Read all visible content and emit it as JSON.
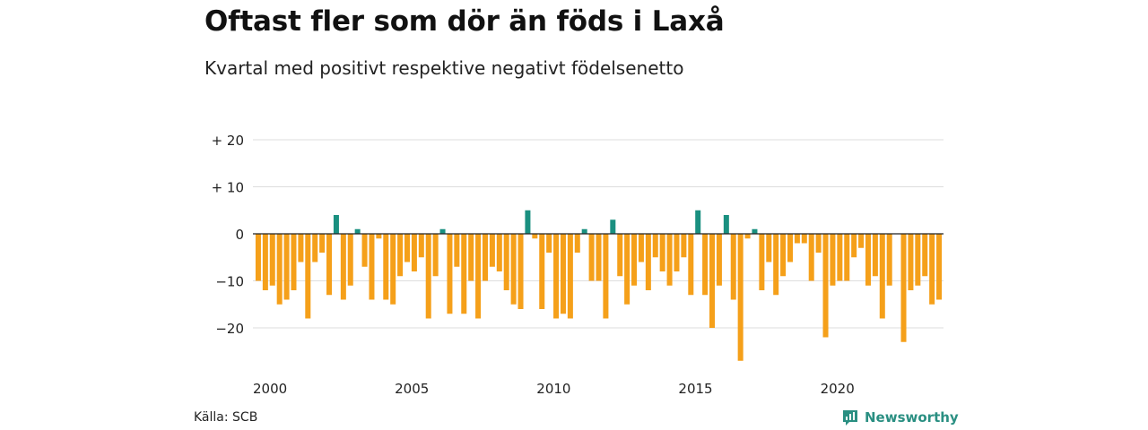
{
  "title": "Oftast fler som dör än föds i Laxå",
  "subtitle": "Kvartal med positivt respektive negativt födelsenetto",
  "source": "Källa: SCB",
  "brand": "Newsworthy",
  "colors": {
    "positive": "#1a9080",
    "negative": "#f5a01a",
    "grid": "#dddddd",
    "zero": "#222222"
  },
  "chart_data": {
    "type": "bar",
    "title": "Oftast fler som dör än föds i Laxå",
    "subtitle": "Kvartal med positivt respektive negativt födelsenetto",
    "xlabel": "",
    "ylabel": "",
    "ylim": [
      -28,
      22
    ],
    "yticks": [
      {
        "value": 20,
        "label": "+ 20"
      },
      {
        "value": 10,
        "label": "+ 10"
      },
      {
        "value": 0,
        "label": "0"
      },
      {
        "value": -10,
        "label": "−10"
      },
      {
        "value": -20,
        "label": "−20"
      }
    ],
    "xticks": [
      {
        "year": 2000,
        "label": "2000"
      },
      {
        "year": 2005,
        "label": "2005"
      },
      {
        "year": 2010,
        "label": "2010"
      },
      {
        "year": 2015,
        "label": "2015"
      },
      {
        "year": 2020,
        "label": "2020"
      }
    ],
    "grid": true,
    "legend": "none",
    "start_year": 2000,
    "start_quarter": 1,
    "values": [
      -10,
      -12,
      -11,
      -15,
      -14,
      -12,
      -6,
      -18,
      -6,
      -4,
      -13,
      4,
      -14,
      -11,
      1,
      -7,
      -14,
      -1,
      -14,
      -15,
      -9,
      -6,
      -8,
      -5,
      -18,
      -9,
      1,
      -17,
      -7,
      -17,
      -10,
      -18,
      -10,
      -7,
      -8,
      -12,
      -15,
      -16,
      5,
      -1,
      -16,
      -4,
      -18,
      -17,
      -18,
      -4,
      1,
      -10,
      -10,
      -18,
      3,
      -9,
      -15,
      -11,
      -6,
      -12,
      -5,
      -8,
      -11,
      -8,
      -5,
      -13,
      5,
      -13,
      -20,
      -11,
      4,
      -14,
      -27,
      -1,
      1,
      -12,
      -6,
      -13,
      -9,
      -6,
      -2,
      -2,
      -10,
      -4,
      -22,
      -11,
      -10,
      -10,
      -5,
      -3,
      -11,
      -9,
      -18,
      -11,
      0,
      -23,
      -12,
      -11,
      -9,
      -15,
      -14
    ]
  }
}
